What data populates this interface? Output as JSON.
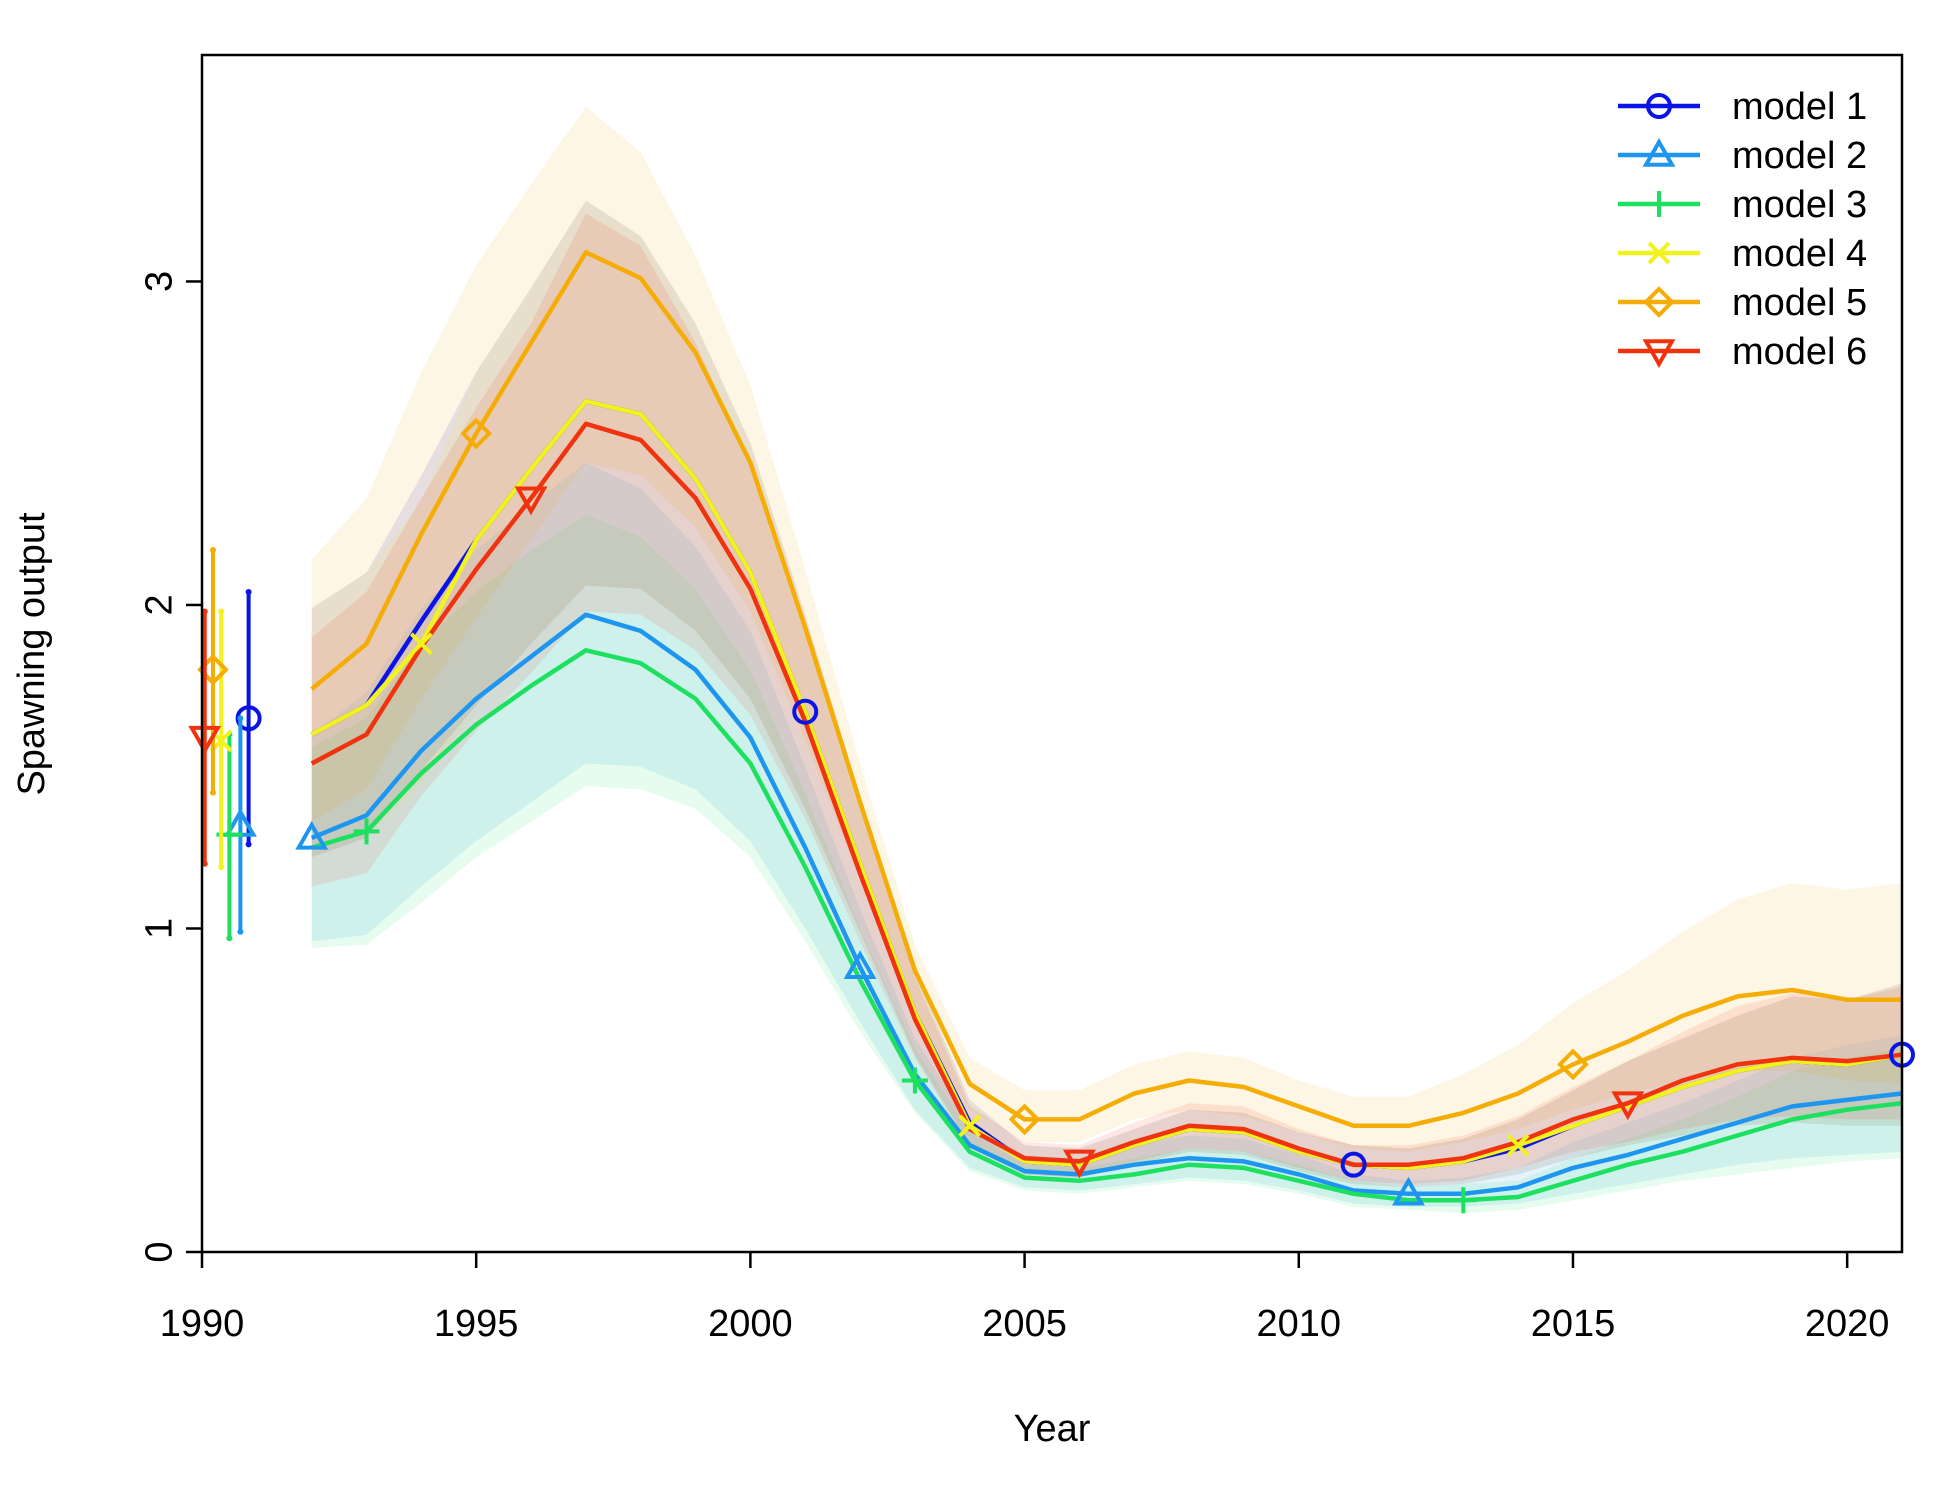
{
  "chart_data": {
    "type": "line",
    "xlabel": "Year",
    "ylabel": "Spawning output",
    "xlim": [
      1990,
      2021
    ],
    "ylim": [
      0,
      3.7
    ],
    "xticks": [
      "1990",
      "1995",
      "2000",
      "2005",
      "2010",
      "2015",
      "2020"
    ],
    "yticks": [
      "0",
      "1",
      "2",
      "3"
    ],
    "legend_position": "top-right",
    "grid": false,
    "initial_estimates": [
      {
        "series": "model 1",
        "x": 1990.85,
        "y": 1.65,
        "low": 1.26,
        "high": 2.04
      },
      {
        "series": "model 2",
        "x": 1990.7,
        "y": 1.32,
        "low": 0.99,
        "high": 1.65
      },
      {
        "series": "model 3",
        "x": 1990.5,
        "y": 1.29,
        "low": 0.97,
        "high": 1.6
      },
      {
        "series": "model 4",
        "x": 1990.35,
        "y": 1.58,
        "low": 1.19,
        "high": 1.98
      },
      {
        "series": "model 5",
        "x": 1990.2,
        "y": 1.8,
        "low": 1.42,
        "high": 2.17
      },
      {
        "series": "model 6",
        "x": 1990.05,
        "y": 1.59,
        "low": 1.2,
        "high": 1.98
      }
    ],
    "x": [
      1992,
      1993,
      1994,
      1995,
      1996,
      1997,
      1998,
      1999,
      2000,
      2001,
      2002,
      2003,
      2004,
      2005,
      2006,
      2007,
      2008,
      2009,
      2010,
      2011,
      2012,
      2013,
      2014,
      2015,
      2016,
      2017,
      2018,
      2019,
      2020,
      2021
    ],
    "series": [
      {
        "name": "model 1",
        "color": "#0b14e6",
        "marker": "circle",
        "marker_every": 10,
        "marker_offset": 9,
        "values": [
          1.6,
          1.69,
          1.95,
          2.2,
          2.42,
          2.63,
          2.59,
          2.39,
          2.1,
          1.67,
          1.2,
          0.74,
          0.4,
          0.28,
          0.27,
          0.33,
          0.38,
          0.37,
          0.31,
          0.27,
          0.26,
          0.28,
          0.32,
          0.39,
          0.45,
          0.51,
          0.56,
          0.59,
          0.58,
          0.61
        ],
        "lower": [
          1.22,
          1.28,
          1.49,
          1.69,
          1.88,
          2.06,
          2.05,
          1.92,
          1.71,
          1.37,
          0.99,
          0.61,
          0.33,
          0.24,
          0.23,
          0.27,
          0.31,
          0.3,
          0.25,
          0.21,
          0.2,
          0.21,
          0.24,
          0.29,
          0.33,
          0.36,
          0.39,
          0.4,
          0.39,
          0.39
        ],
        "upper": [
          1.99,
          2.1,
          2.4,
          2.72,
          2.98,
          3.25,
          3.14,
          2.87,
          2.5,
          1.97,
          1.41,
          0.87,
          0.47,
          0.33,
          0.32,
          0.38,
          0.44,
          0.43,
          0.37,
          0.33,
          0.32,
          0.35,
          0.41,
          0.5,
          0.59,
          0.66,
          0.73,
          0.79,
          0.78,
          0.83
        ]
      },
      {
        "name": "model 2",
        "color": "#1e96f0",
        "marker": "triangle-up",
        "marker_every": 10,
        "marker_offset": 0,
        "values": [
          1.28,
          1.35,
          1.55,
          1.71,
          1.84,
          1.97,
          1.92,
          1.8,
          1.59,
          1.25,
          0.88,
          0.55,
          0.33,
          0.25,
          0.24,
          0.27,
          0.29,
          0.28,
          0.24,
          0.19,
          0.18,
          0.18,
          0.2,
          0.26,
          0.3,
          0.35,
          0.4,
          0.45,
          0.47,
          0.49
        ],
        "lower": [
          0.96,
          0.98,
          1.13,
          1.27,
          1.39,
          1.51,
          1.5,
          1.43,
          1.27,
          1.0,
          0.71,
          0.44,
          0.26,
          0.2,
          0.19,
          0.21,
          0.23,
          0.22,
          0.19,
          0.15,
          0.14,
          0.14,
          0.15,
          0.18,
          0.21,
          0.24,
          0.27,
          0.29,
          0.3,
          0.31
        ],
        "upper": [
          1.6,
          1.73,
          1.99,
          2.17,
          2.31,
          2.44,
          2.36,
          2.18,
          1.92,
          1.5,
          1.06,
          0.66,
          0.4,
          0.3,
          0.29,
          0.33,
          0.36,
          0.35,
          0.3,
          0.24,
          0.22,
          0.23,
          0.26,
          0.34,
          0.4,
          0.46,
          0.53,
          0.6,
          0.64,
          0.67
        ]
      },
      {
        "name": "model 3",
        "color": "#1ee060",
        "marker": "plus",
        "marker_every": 10,
        "marker_offset": 1,
        "values": [
          1.25,
          1.3,
          1.48,
          1.63,
          1.75,
          1.86,
          1.82,
          1.71,
          1.51,
          1.19,
          0.84,
          0.53,
          0.31,
          0.23,
          0.22,
          0.24,
          0.27,
          0.26,
          0.22,
          0.18,
          0.16,
          0.16,
          0.17,
          0.22,
          0.27,
          0.31,
          0.36,
          0.41,
          0.44,
          0.46
        ],
        "lower": [
          0.94,
          0.95,
          1.08,
          1.22,
          1.33,
          1.44,
          1.43,
          1.37,
          1.22,
          0.96,
          0.68,
          0.43,
          0.25,
          0.19,
          0.18,
          0.2,
          0.22,
          0.21,
          0.18,
          0.14,
          0.13,
          0.12,
          0.13,
          0.16,
          0.19,
          0.22,
          0.24,
          0.26,
          0.28,
          0.29
        ],
        "upper": [
          1.56,
          1.65,
          1.88,
          2.04,
          2.17,
          2.28,
          2.21,
          2.05,
          1.8,
          1.42,
          1.0,
          0.63,
          0.37,
          0.27,
          0.26,
          0.29,
          0.32,
          0.31,
          0.27,
          0.22,
          0.2,
          0.21,
          0.22,
          0.29,
          0.35,
          0.41,
          0.48,
          0.56,
          0.6,
          0.63
        ]
      },
      {
        "name": "model 4",
        "color": "#f2f21e",
        "marker": "x",
        "marker_every": 10,
        "marker_offset": 2,
        "values": [
          1.6,
          1.69,
          1.88,
          2.2,
          2.42,
          2.63,
          2.59,
          2.39,
          2.1,
          1.67,
          1.2,
          0.74,
          0.39,
          0.28,
          0.27,
          0.33,
          0.38,
          0.37,
          0.31,
          0.27,
          0.26,
          0.28,
          0.33,
          0.39,
          0.45,
          0.51,
          0.56,
          0.59,
          0.58,
          0.61
        ],
        "lower": [
          1.22,
          1.28,
          1.45,
          1.69,
          1.88,
          2.06,
          2.05,
          1.92,
          1.71,
          1.37,
          0.99,
          0.61,
          0.33,
          0.24,
          0.23,
          0.27,
          0.31,
          0.3,
          0.25,
          0.21,
          0.2,
          0.21,
          0.24,
          0.29,
          0.33,
          0.36,
          0.39,
          0.4,
          0.39,
          0.39
        ],
        "upper": [
          1.99,
          2.1,
          2.32,
          2.72,
          2.98,
          3.25,
          3.14,
          2.87,
          2.5,
          1.97,
          1.41,
          0.87,
          0.46,
          0.33,
          0.32,
          0.38,
          0.44,
          0.43,
          0.37,
          0.33,
          0.32,
          0.35,
          0.41,
          0.5,
          0.59,
          0.66,
          0.73,
          0.79,
          0.78,
          0.83
        ]
      },
      {
        "name": "model 5",
        "color": "#f5ad05",
        "marker": "diamond",
        "marker_every": 10,
        "marker_offset": 3,
        "values": [
          1.74,
          1.88,
          2.22,
          2.53,
          2.81,
          3.09,
          3.01,
          2.78,
          2.44,
          1.93,
          1.39,
          0.87,
          0.52,
          0.41,
          0.41,
          0.49,
          0.53,
          0.51,
          0.45,
          0.39,
          0.39,
          0.43,
          0.49,
          0.58,
          0.65,
          0.73,
          0.79,
          0.81,
          0.78,
          0.78
        ],
        "lower": [
          1.33,
          1.43,
          1.71,
          1.96,
          2.2,
          2.44,
          2.4,
          2.24,
          1.98,
          1.58,
          1.15,
          0.72,
          0.44,
          0.34,
          0.34,
          0.41,
          0.44,
          0.42,
          0.37,
          0.32,
          0.31,
          0.34,
          0.38,
          0.44,
          0.49,
          0.53,
          0.56,
          0.56,
          0.53,
          0.52
        ],
        "upper": [
          2.14,
          2.33,
          2.72,
          3.05,
          3.3,
          3.54,
          3.4,
          3.08,
          2.68,
          2.11,
          1.51,
          0.95,
          0.6,
          0.5,
          0.5,
          0.58,
          0.62,
          0.6,
          0.53,
          0.48,
          0.48,
          0.55,
          0.64,
          0.77,
          0.87,
          0.99,
          1.09,
          1.14,
          1.12,
          1.14
        ]
      },
      {
        "name": "model 6",
        "color": "#f0320f",
        "marker": "triangle-down",
        "marker_every": 10,
        "marker_offset": 4,
        "values": [
          1.51,
          1.6,
          1.87,
          2.11,
          2.33,
          2.56,
          2.51,
          2.33,
          2.05,
          1.64,
          1.17,
          0.72,
          0.38,
          0.29,
          0.28,
          0.34,
          0.39,
          0.38,
          0.32,
          0.27,
          0.27,
          0.29,
          0.34,
          0.41,
          0.46,
          0.53,
          0.58,
          0.6,
          0.59,
          0.61
        ],
        "lower": [
          1.13,
          1.17,
          1.41,
          1.61,
          1.79,
          1.98,
          1.97,
          1.86,
          1.66,
          1.34,
          0.96,
          0.6,
          0.32,
          0.24,
          0.23,
          0.28,
          0.32,
          0.31,
          0.26,
          0.22,
          0.21,
          0.22,
          0.26,
          0.31,
          0.34,
          0.38,
          0.41,
          0.42,
          0.41,
          0.41
        ],
        "upper": [
          1.9,
          2.04,
          2.33,
          2.61,
          2.87,
          3.21,
          3.11,
          2.81,
          2.44,
          1.94,
          1.38,
          0.85,
          0.45,
          0.34,
          0.33,
          0.4,
          0.46,
          0.45,
          0.38,
          0.33,
          0.33,
          0.36,
          0.42,
          0.51,
          0.59,
          0.68,
          0.76,
          0.8,
          0.78,
          0.82
        ]
      }
    ]
  }
}
